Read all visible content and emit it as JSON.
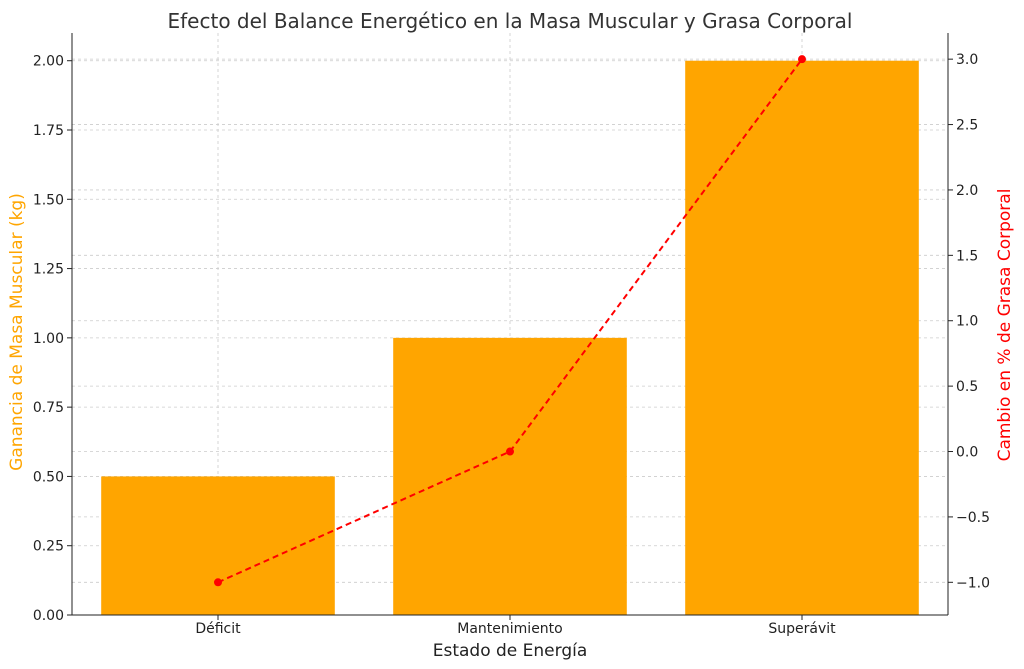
{
  "chart_data": {
    "type": "bar+line",
    "title": "Efecto del Balance Energético en la Masa Muscular y Grasa Corporal",
    "xlabel": "Estado de Energía",
    "categories": [
      "Déficit",
      "Mantenimiento",
      "Superávit"
    ],
    "bar_series": {
      "axis_label": "Ganancia de Masa Muscular (kg)",
      "values": [
        0.5,
        1.0,
        2.0
      ],
      "color": "#FFA500"
    },
    "line_series": {
      "axis_label": "Cambio en % de Grasa Corporal",
      "values": [
        -1.0,
        0.0,
        3.0
      ],
      "color": "#FF0000",
      "style": "dashed",
      "marker": "circle"
    },
    "y_left": {
      "lim": [
        0,
        2.1
      ],
      "ticks": [
        0.0,
        0.25,
        0.5,
        0.75,
        1.0,
        1.25,
        1.5,
        1.75,
        2.0
      ],
      "tick_labels": [
        "0.00",
        "0.25",
        "0.50",
        "0.75",
        "1.00",
        "1.25",
        "1.50",
        "1.75",
        "2.00"
      ],
      "color": "#FFA500"
    },
    "y_right": {
      "lim": [
        -1.25,
        3.2
      ],
      "ticks": [
        -1.0,
        -0.5,
        0.0,
        0.5,
        1.0,
        1.5,
        2.0,
        2.5,
        3.0
      ],
      "tick_labels": [
        "−1.0",
        "−0.5",
        "0.0",
        "0.5",
        "1.0",
        "1.5",
        "2.0",
        "2.5",
        "3.0"
      ],
      "color": "#FF0000"
    },
    "grid": true
  }
}
